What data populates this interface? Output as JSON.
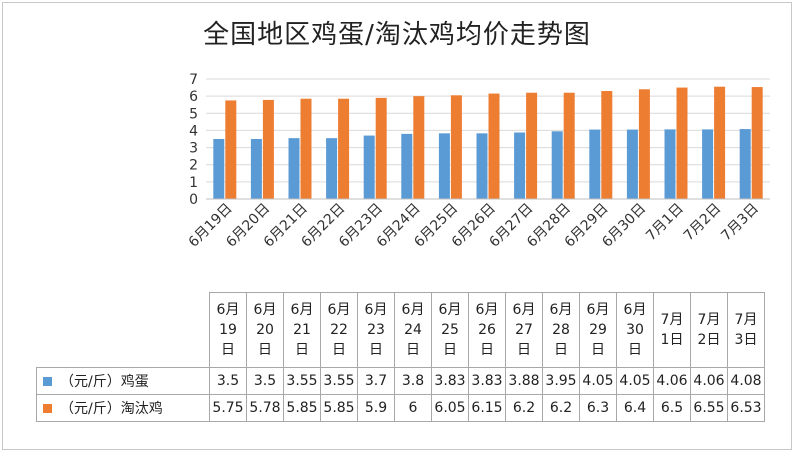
{
  "chart_data": {
    "type": "bar",
    "title": "全国地区鸡蛋/淘汰鸡均价走势图",
    "categories": [
      "6月19日",
      "6月20日",
      "6月21日",
      "6月22日",
      "6月23日",
      "6月24日",
      "6月25日",
      "6月26日",
      "6月27日",
      "6月28日",
      "6月29日",
      "6月30日",
      "7月1日",
      "7月2日",
      "7月3日"
    ],
    "table_headers": [
      [
        "6月",
        "19",
        "日"
      ],
      [
        "6月",
        "20",
        "日"
      ],
      [
        "6月",
        "21",
        "日"
      ],
      [
        "6月",
        "22",
        "日"
      ],
      [
        "6月",
        "23",
        "日"
      ],
      [
        "6月",
        "24",
        "日"
      ],
      [
        "6月",
        "25",
        "日"
      ],
      [
        "6月",
        "26",
        "日"
      ],
      [
        "6月",
        "27",
        "日"
      ],
      [
        "6月",
        "28",
        "日"
      ],
      [
        "6月",
        "29",
        "日"
      ],
      [
        "6月",
        "30",
        "日"
      ],
      [
        "7月",
        "1日"
      ],
      [
        "7月",
        "2日"
      ],
      [
        "7月",
        "3日"
      ]
    ],
    "series": [
      {
        "name": "（元/斤）鸡蛋",
        "color": "#5B9BD5",
        "values": [
          3.5,
          3.5,
          3.55,
          3.55,
          3.7,
          3.8,
          3.83,
          3.83,
          3.88,
          3.95,
          4.05,
          4.05,
          4.06,
          4.06,
          4.08
        ],
        "labels": [
          "3.5",
          "3.5",
          "3.55",
          "3.55",
          "3.7",
          "3.8",
          "3.83",
          "3.83",
          "3.88",
          "3.95",
          "4.05",
          "4.05",
          "4.06",
          "4.06",
          "4.08"
        ]
      },
      {
        "name": "（元/斤）淘汰鸡",
        "color": "#ED7D31",
        "values": [
          5.75,
          5.78,
          5.85,
          5.85,
          5.9,
          6,
          6.05,
          6.15,
          6.2,
          6.2,
          6.3,
          6.4,
          6.5,
          6.55,
          6.53
        ],
        "labels": [
          "5.75",
          "5.78",
          "5.85",
          "5.85",
          "5.9",
          "6",
          "6.05",
          "6.15",
          "6.2",
          "6.2",
          "6.3",
          "6.4",
          "6.5",
          "6.55",
          "6.53"
        ]
      }
    ],
    "ylim": [
      0,
      7
    ],
    "yticks": [
      0,
      1,
      2,
      3,
      4,
      5,
      6,
      7
    ],
    "grid": true,
    "legend": "data-table"
  }
}
